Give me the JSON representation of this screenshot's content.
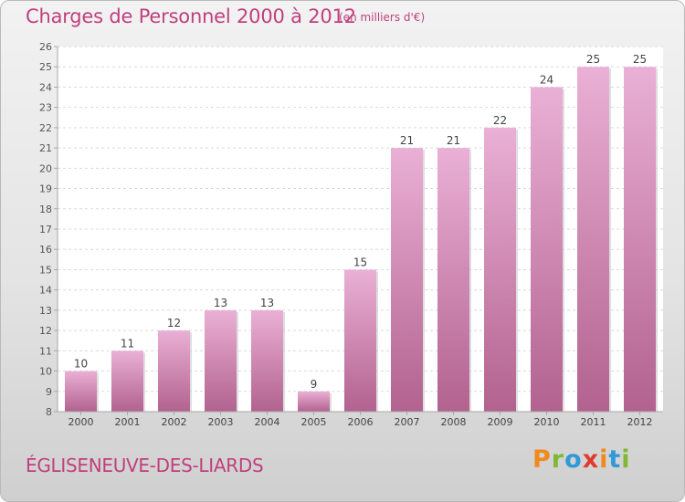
{
  "header": {
    "title": "Charges de Personnel 2000 à 2012",
    "unit": "(en milliers d'€)"
  },
  "footer": {
    "commune": "ÉGLISENEUVE-DES-LIARDS",
    "brand": "Proxiti"
  },
  "colors": {
    "title": "#c0407e",
    "bar_light": "#eab0d6",
    "bar_dark": "#b2628f",
    "brand_letters": [
      "#f08a1c",
      "#7fb833",
      "#2f9ad8",
      "#e03a2c",
      "#f08a1c",
      "#2f9ad8",
      "#7fb833"
    ]
  },
  "chart_data": {
    "type": "bar",
    "categories": [
      "2000",
      "2001",
      "2002",
      "2003",
      "2004",
      "2005",
      "2006",
      "2007",
      "2008",
      "2009",
      "2010",
      "2011",
      "2012"
    ],
    "values": [
      10,
      11,
      12,
      13,
      13,
      9,
      15,
      21,
      21,
      22,
      24,
      25,
      25
    ],
    "ylim": [
      8,
      26
    ],
    "yticks": [
      8,
      9,
      10,
      11,
      12,
      13,
      14,
      15,
      16,
      17,
      18,
      19,
      20,
      21,
      22,
      23,
      24,
      25,
      26
    ],
    "grid": true,
    "data_labels": true
  }
}
